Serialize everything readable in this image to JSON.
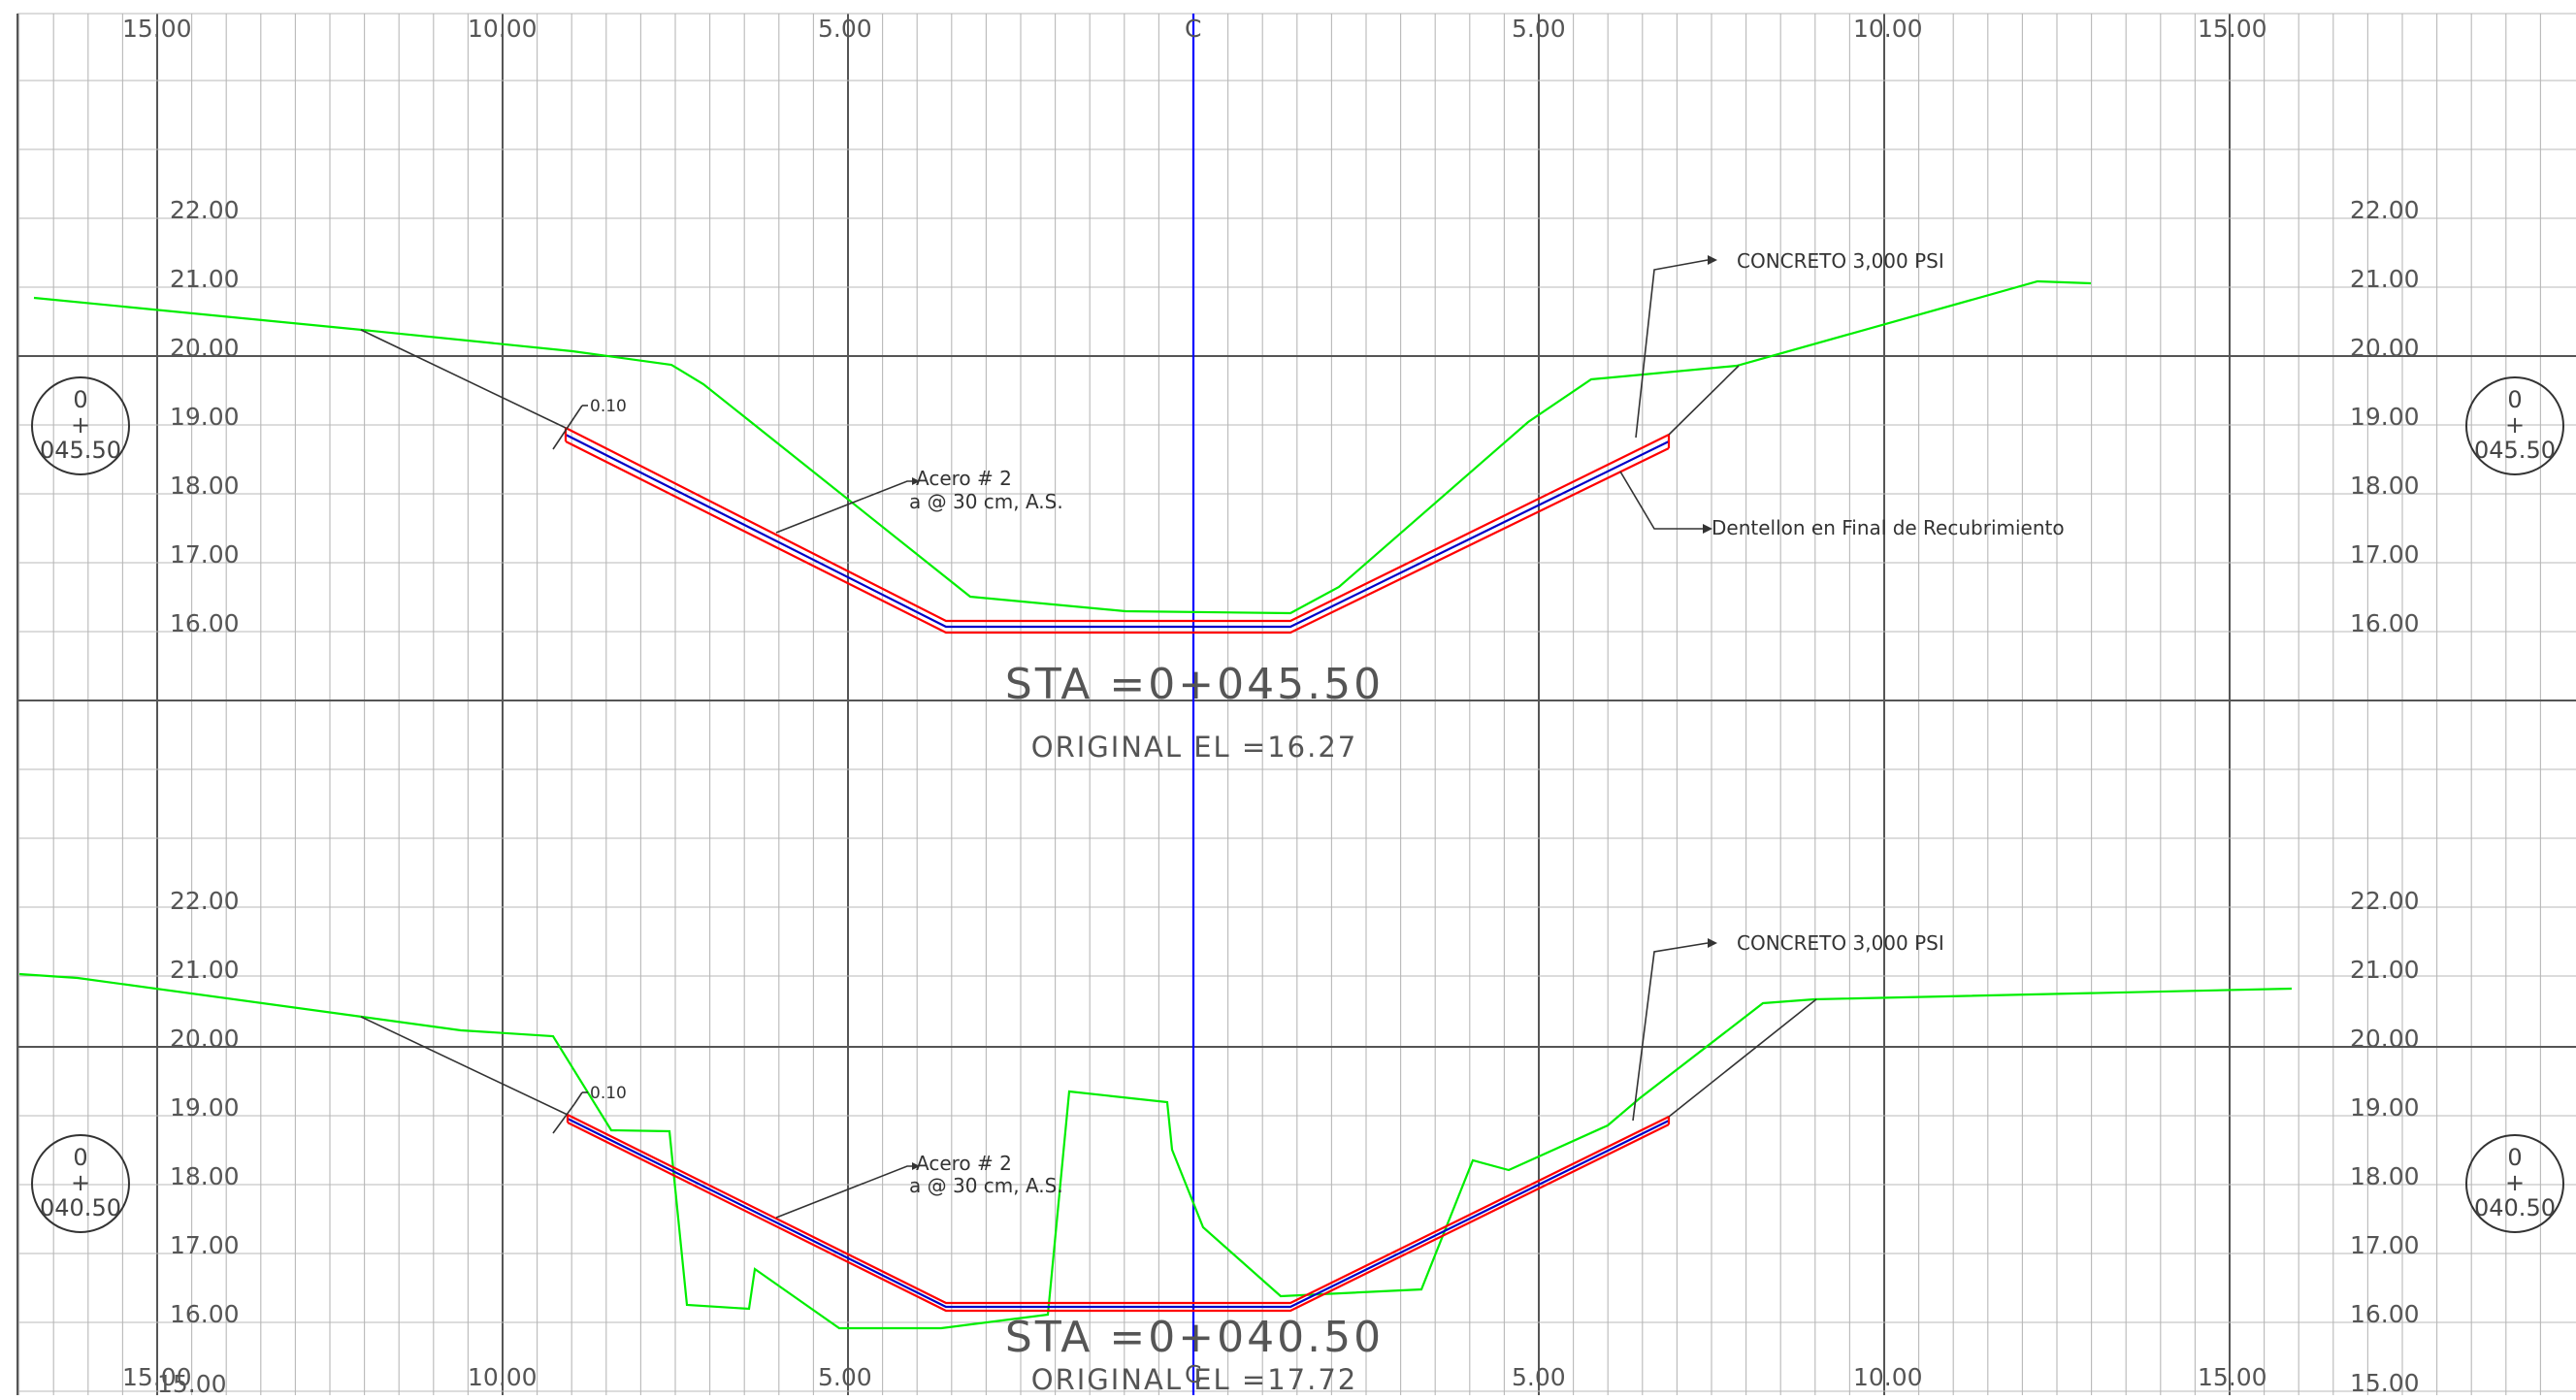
{
  "drawing": {
    "centerline_symbol": "C",
    "colors": {
      "grid_minor": "#b8b8b8",
      "grid_major": "#555555",
      "ground": "#00ee00",
      "centerline": "#0000ff",
      "liner_outer": "#ff0000",
      "liner_inner": "#0000c8",
      "leader": "#333333"
    }
  },
  "offset_labels": {
    "top": [
      "15.00",
      "10.00",
      "5.00",
      "5.00",
      "10.00",
      "15.00"
    ],
    "bottom": [
      "15.00",
      "10.00",
      "5.00",
      "5.00",
      "10.00",
      "15.00"
    ]
  },
  "sections": [
    {
      "id": "sta-045-50",
      "station_bubble": {
        "line1": "0",
        "line2": "+",
        "line3": "045.50"
      },
      "elevations": [
        "22.00",
        "21.00",
        "20.00",
        "19.00",
        "18.00",
        "17.00",
        "16.00"
      ],
      "title": "STA =0+045.50",
      "original_el": "ORIGINAL EL =16.27",
      "notes": {
        "thickness": "0.10",
        "steel_1": "Acero # 2",
        "steel_2": "a @ 30 cm, A.S.",
        "concrete": "CONCRETO 3,000 PSI",
        "key": "Dentellon en Final de Recubrimiento"
      }
    },
    {
      "id": "sta-040-50",
      "station_bubble": {
        "line1": "0",
        "line2": "+",
        "line3": "040.50"
      },
      "elevations": [
        "22.00",
        "21.00",
        "20.00",
        "19.00",
        "18.00",
        "17.00",
        "16.00"
      ],
      "extra_right_elevation": "15.00",
      "extra_left_mark": "15.00",
      "title": "STA =0+040.50",
      "original_el": "ORIGINAL EL =17.72",
      "notes": {
        "thickness": "0.10",
        "steel_1": "Acero # 2",
        "steel_2": "a @ 30 cm, A.S.",
        "concrete": "CONCRETO 3,000 PSI"
      }
    }
  ]
}
